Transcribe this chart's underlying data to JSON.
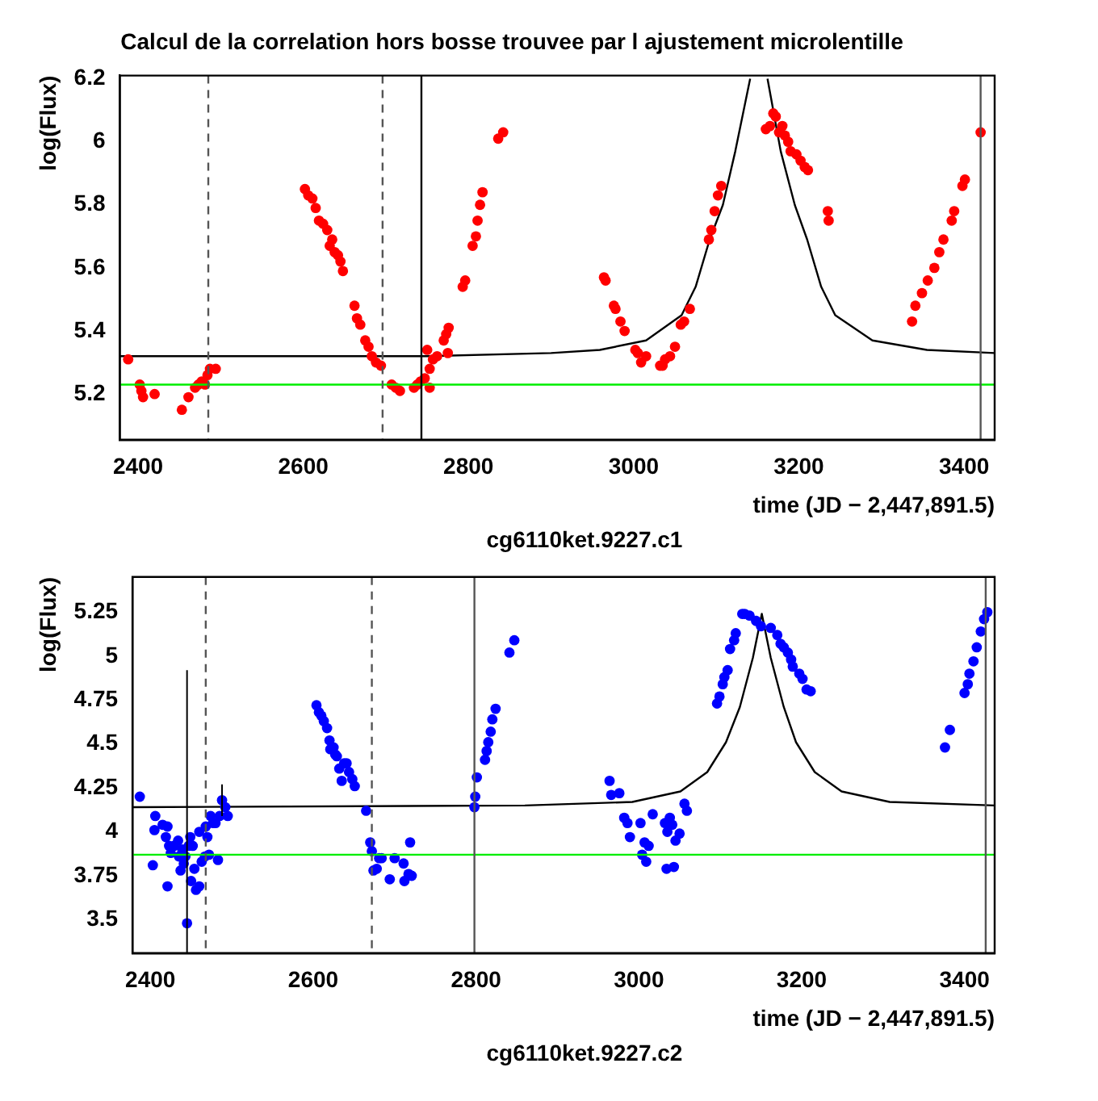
{
  "chart_data": [
    {
      "type": "scatter",
      "title": "Calcul de la correlation hors bosse trouvee par l ajustement microlentille",
      "xlabel": "time (JD − 2,447,891.5)",
      "ylabel": "log(Flux)",
      "annotations": [
        "cg6110ket.9227.c1"
      ],
      "xlim": [
        2378,
        3437
      ],
      "xticks": [
        2400,
        2600,
        2800,
        3000,
        3200,
        3400
      ],
      "ylim": [
        5.055,
        6.21
      ],
      "yticks": [
        5.2,
        5.4,
        5.6,
        5.8,
        6,
        6.2
      ],
      "marker": "circle",
      "series": [
        {
          "color": "#ff0000",
          "x": [
            2388,
            2402,
            2404,
            2406,
            2420,
            2453,
            2461,
            2469,
            2473,
            2477,
            2481,
            2484,
            2487,
            2494,
            2602,
            2606,
            2611,
            2615,
            2619,
            2624,
            2629,
            2632,
            2635,
            2638,
            2642,
            2645,
            2648,
            2662,
            2665,
            2669,
            2675,
            2679,
            2683,
            2688,
            2694,
            2707,
            2712,
            2717,
            2734,
            2738,
            2742,
            2747,
            2750,
            2753,
            2753,
            2757,
            2762,
            2770,
            2773,
            2776,
            2775,
            2793,
            2796,
            2805,
            2809,
            2811,
            2814,
            2817,
            2836,
            2842,
            2964,
            2966,
            2976,
            2978,
            2984,
            2989,
            3002,
            3005,
            3009,
            3015,
            3032,
            3035,
            3038,
            3044,
            3050,
            3057,
            3061,
            3068,
            3091,
            3094,
            3098,
            3102,
            3106,
            3160,
            3165,
            3169,
            3172,
            3176,
            3180,
            3183,
            3187,
            3190,
            3197,
            3202,
            3207,
            3211,
            3235,
            3236,
            3337,
            3341,
            3349,
            3356,
            3364,
            3370,
            3375,
            3385,
            3388,
            3398,
            3401,
            3420
          ],
          "values": [
            5.31,
            5.23,
            5.21,
            5.19,
            5.2,
            5.15,
            5.19,
            5.22,
            5.23,
            5.24,
            5.23,
            5.26,
            5.28,
            5.28,
            5.85,
            5.83,
            5.82,
            5.79,
            5.75,
            5.74,
            5.72,
            5.67,
            5.69,
            5.65,
            5.64,
            5.62,
            5.59,
            5.48,
            5.44,
            5.42,
            5.37,
            5.35,
            5.32,
            5.3,
            5.29,
            5.23,
            5.22,
            5.21,
            5.22,
            5.23,
            5.24,
            5.25,
            5.34,
            5.22,
            5.28,
            5.31,
            5.32,
            5.37,
            5.39,
            5.41,
            5.33,
            5.54,
            5.56,
            5.67,
            5.7,
            5.75,
            5.8,
            5.84,
            6.01,
            6.03,
            5.57,
            5.56,
            5.48,
            5.47,
            5.43,
            5.4,
            5.34,
            5.33,
            5.3,
            5.32,
            5.29,
            5.29,
            5.31,
            5.32,
            5.35,
            5.42,
            5.43,
            5.47,
            5.69,
            5.72,
            5.78,
            5.83,
            5.86,
            6.04,
            6.05,
            6.09,
            6.08,
            6.03,
            6.05,
            6.02,
            6,
            5.97,
            5.96,
            5.94,
            5.92,
            5.91,
            5.78,
            5.75,
            5.43,
            5.48,
            5.52,
            5.56,
            5.6,
            5.65,
            5.69,
            5.75,
            5.78,
            5.86,
            5.88,
            6.03
          ]
        },
        {
          "type": "line",
          "marker": "none",
          "color": "#000000",
          "x": [
            2378,
            2750,
            2900,
            2959,
            3015,
            3058,
            3075,
            3092,
            3108,
            3123,
            3141,
            3152,
            3162,
            3178,
            3195,
            3210,
            3227,
            3244,
            3289,
            3355,
            3437
          ],
          "values": [
            5.32,
            5.32,
            5.33,
            5.34,
            5.37,
            5.45,
            5.54,
            5.69,
            5.8,
            5.97,
            6.2,
            null,
            6.2,
            5.97,
            5.8,
            5.69,
            5.54,
            5.45,
            5.37,
            5.34,
            5.33
          ]
        }
      ],
      "ref_lines": [
        {
          "axis": "y",
          "value": 5.23,
          "color": "#00ee00"
        },
        {
          "axis": "x",
          "value": 2485,
          "color": "#555555",
          "line_style": "dashed"
        },
        {
          "axis": "x",
          "value": 2696,
          "color": "#555555",
          "line_style": "dashed"
        },
        {
          "axis": "x",
          "value": 2743,
          "color": "#000000"
        },
        {
          "axis": "x",
          "value": 3420,
          "color": "#555555"
        }
      ]
    },
    {
      "type": "scatter",
      "xlabel": "time (JD − 2,447,891.5)",
      "ylabel": "log(Flux)",
      "annotations": [
        "cg6110ket.9227.c2"
      ],
      "xlim": [
        2378,
        3437
      ],
      "xticks": [
        2400,
        2600,
        2800,
        3000,
        3200,
        3400
      ],
      "ylim": [
        3.31,
        5.45
      ],
      "yticks": [
        3.5,
        3.75,
        4,
        4.25,
        4.5,
        4.75,
        5,
        5.25
      ],
      "marker": "circle",
      "series": [
        {
          "color": "#0000ff",
          "x": [
            2387,
            2405,
            2406,
            2403,
            2415,
            2419,
            2421,
            2421,
            2423,
            2425,
            2429,
            2434,
            2435,
            2437,
            2439,
            2441,
            2443,
            2447,
            2449,
            2450,
            2452,
            2454,
            2456,
            2460,
            2460,
            2463,
            2467,
            2468,
            2470,
            2472,
            2474,
            2477,
            2480,
            2483,
            2485,
            2492,
            2495,
            2604,
            2607,
            2610,
            2613,
            2617,
            2620,
            2621,
            2625,
            2627,
            2629,
            2632,
            2635,
            2638,
            2641,
            2644,
            2648,
            2651,
            2665,
            2670,
            2672,
            2674,
            2678,
            2681,
            2684,
            2694,
            2700,
            2711,
            2712,
            2717,
            2719,
            2721,
            2798,
            2799,
            2801,
            2811,
            2813,
            2815,
            2818,
            2820,
            2824,
            2841,
            2847,
            2964,
            2966,
            2976,
            2982,
            2986,
            2989,
            3002,
            3004,
            3007,
            3009,
            3012,
            3017,
            3032,
            3034,
            3035,
            3038,
            3041,
            3043,
            3045,
            3050,
            3056,
            3059,
            3096,
            3099,
            3103,
            3105,
            3109,
            3112,
            3117,
            3119,
            3127,
            3130,
            3136,
            3144,
            3150,
            3162,
            3170,
            3174,
            3178,
            3183,
            3187,
            3189,
            3197,
            3201,
            3206,
            3211,
            3376,
            3382,
            3400,
            3404,
            3406,
            3411,
            3415,
            3420,
            3424,
            3428
          ],
          "values": [
            4.2,
            4.01,
            4.09,
            3.81,
            4.04,
            3.97,
            4.03,
            3.69,
            3.92,
            3.88,
            3.92,
            3.95,
            3.86,
            3.78,
            3.9,
            3.82,
            3.86,
            3.92,
            3.97,
            3.72,
            3.92,
            3.79,
            3.67,
            3.69,
            4,
            3.83,
            3.86,
            4.03,
            3.97,
            3.87,
            4.09,
            4.05,
            4.05,
            3.84,
            4.09,
            4.14,
            4.09,
            4.72,
            4.68,
            4.66,
            4.63,
            4.59,
            4.52,
            4.47,
            4.48,
            4.44,
            4.43,
            4.36,
            4.29,
            4.39,
            4.39,
            4.34,
            4.3,
            4.26,
            4.12,
            3.94,
            3.89,
            3.78,
            3.79,
            3.85,
            3.85,
            3.73,
            3.85,
            3.82,
            3.72,
            3.76,
            3.94,
            3.75,
            4.14,
            4.2,
            4.31,
            4.41,
            4.46,
            4.51,
            4.57,
            4.64,
            4.7,
            5.02,
            5.09,
            4.29,
            4.21,
            4.22,
            4.08,
            4.05,
            3.97,
            4.05,
            3.87,
            3.94,
            3.83,
            3.92,
            4.1,
            4.05,
            3.79,
            4,
            4.08,
            4.04,
            3.8,
            3.95,
            3.99,
            4.16,
            4.12,
            4.73,
            4.77,
            4.84,
            4.88,
            4.92,
            5.04,
            5.09,
            5.13,
            5.24,
            5.24,
            5.23,
            5.2,
            5.17,
            5.16,
            5.12,
            5.07,
            5.05,
            5.02,
            4.98,
            4.94,
            4.9,
            4.87,
            4.81,
            4.8,
            4.48,
            4.58,
            4.79,
            4.84,
            4.9,
            4.97,
            5.05,
            5.14,
            5.21,
            5.25
          ]
        },
        {
          "color": "#0000ff",
          "x": [
            2445,
            2488
          ],
          "values": [
            3.48,
            4.18
          ],
          "errors": [
            [
              3.31,
              4.92
            ],
            [
              4.09,
              4.27
            ]
          ]
        },
        {
          "type": "line",
          "marker": "none",
          "color": "#000000",
          "x": [
            2378,
            2860,
            2992,
            3051,
            3084,
            3107,
            3124,
            3140,
            3151,
            3162,
            3178,
            3193,
            3216,
            3249,
            3308,
            3437
          ],
          "values": [
            4.14,
            4.15,
            4.17,
            4.23,
            4.34,
            4.51,
            4.71,
            4.99,
            5.24,
            4.99,
            4.71,
            4.51,
            4.34,
            4.23,
            4.17,
            4.15
          ]
        }
      ],
      "ref_lines": [
        {
          "axis": "y",
          "value": 3.87,
          "color": "#00ee00"
        },
        {
          "axis": "x",
          "value": 2468,
          "color": "#555555",
          "line_style": "dashed"
        },
        {
          "axis": "x",
          "value": 2672,
          "color": "#555555",
          "line_style": "dashed"
        },
        {
          "axis": "x",
          "value": 2798,
          "color": "#555555"
        },
        {
          "axis": "x",
          "value": 3426,
          "color": "#555555"
        }
      ]
    }
  ]
}
